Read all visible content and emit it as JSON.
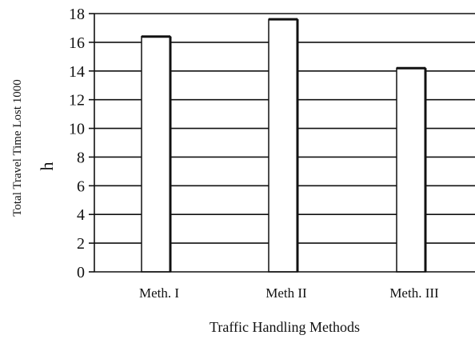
{
  "chart_data": {
    "type": "bar",
    "title": "",
    "xlabel": "Traffic Handling Methods",
    "ylabel": "Total Travel Time Lost 1000",
    "ylabel_unit_glyph": "h",
    "categories": [
      "Meth. I",
      "Meth II",
      "Meth. III"
    ],
    "values": [
      16.4,
      17.6,
      14.2
    ],
    "ylim": [
      0,
      18
    ],
    "yticks": [
      0,
      2,
      4,
      6,
      8,
      10,
      12,
      14,
      16,
      18
    ],
    "grid": true,
    "legend": "none",
    "colors": {
      "bar_fill": "#ffffff",
      "bar_stroke": "#111111",
      "grid": "#111111"
    }
  }
}
